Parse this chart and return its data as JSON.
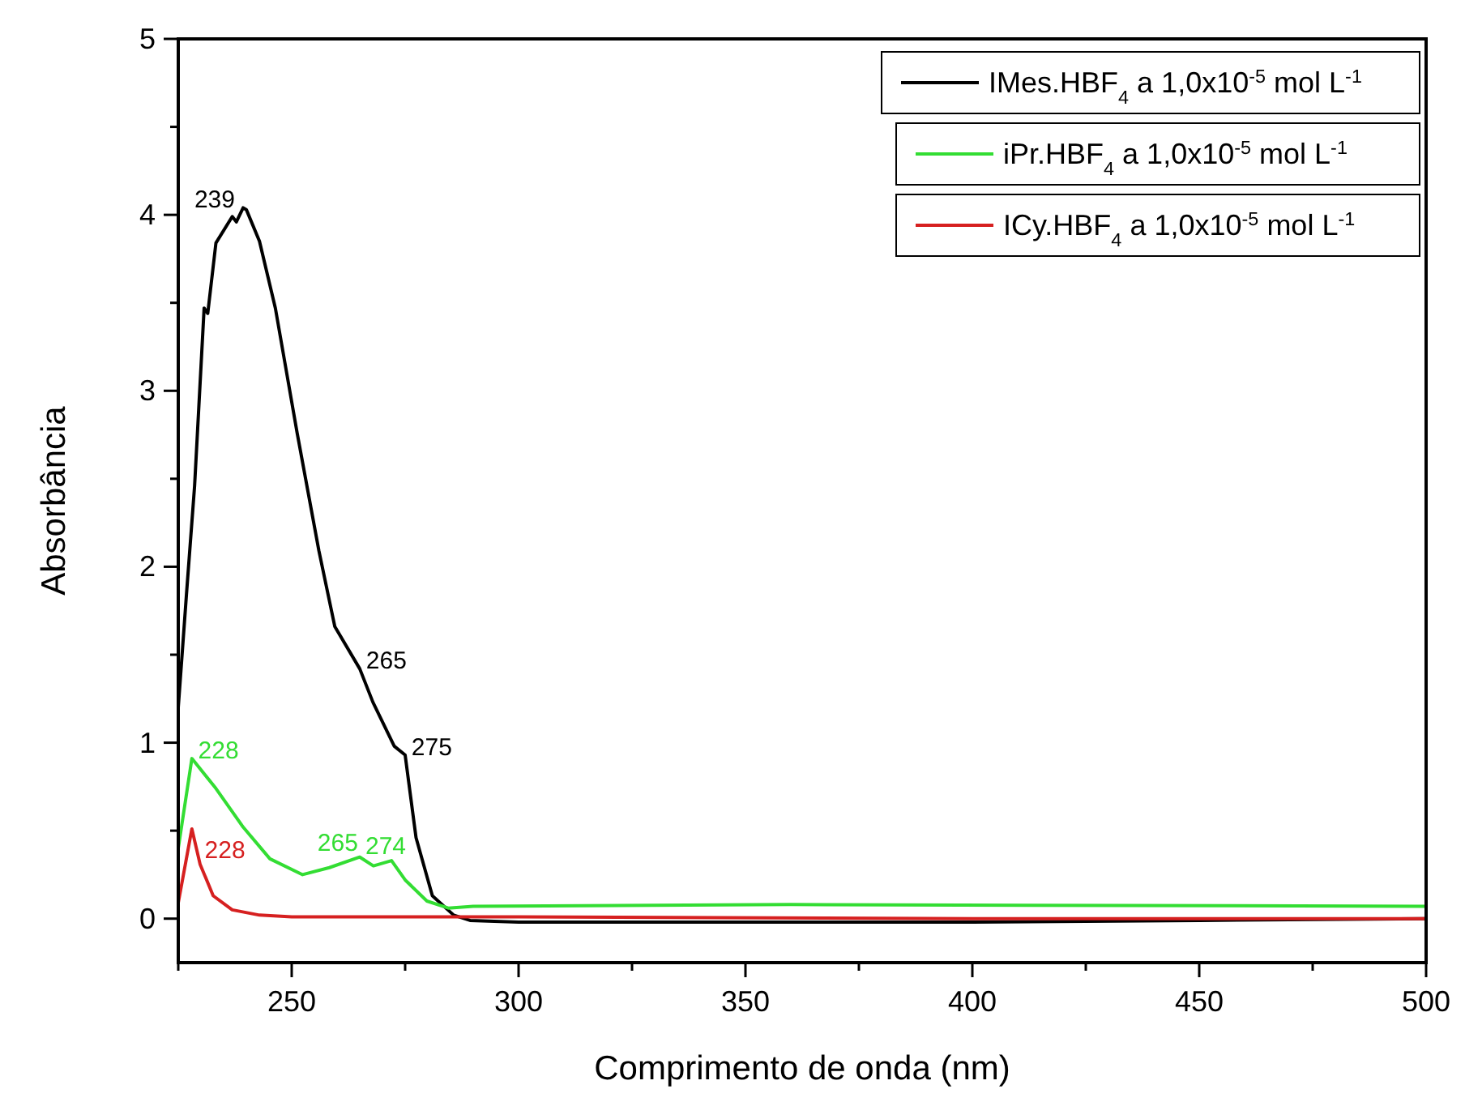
{
  "chart_data": {
    "type": "line",
    "xlabel": "Comprimento de onda (nm)",
    "ylabel": "Absorbância",
    "xlim": [
      225,
      500
    ],
    "xticks": [
      {
        "value": 225,
        "label": null
      },
      250,
      {
        "value": 275,
        "label": null
      },
      300,
      {
        "value": 325,
        "label": null
      },
      350,
      {
        "value": 375,
        "label": null
      },
      400,
      {
        "value": 425,
        "label": null
      },
      450,
      {
        "value": 475,
        "label": null
      },
      500
    ],
    "ylim": [
      -0.25,
      5
    ],
    "yticks": [
      0,
      {
        "value": 0.5,
        "label": null
      },
      1,
      {
        "value": 1.5,
        "label": null
      },
      2,
      {
        "value": 2.5,
        "label": null
      },
      3,
      {
        "value": 3.5,
        "label": null
      },
      4,
      {
        "value": 4.5,
        "label": null
      },
      5
    ],
    "grid": false,
    "legend": "top right",
    "marker": "none",
    "line_style": "solid",
    "annotations": [
      {
        "text": "239",
        "x": 239.3,
        "y": 4.04
      },
      {
        "text": "265",
        "x": 265,
        "y": 1.42
      },
      {
        "text": "275",
        "x": 275,
        "y": 0.93
      },
      {
        "text": "228",
        "x": 228,
        "y": 0.91
      },
      {
        "text": "265",
        "x": 265,
        "y": 0.35
      },
      {
        "text": "274",
        "x": 272,
        "y": 0.33
      },
      {
        "text": "228",
        "x": 228,
        "y": 0.51
      }
    ],
    "series": [
      {
        "name": "IMes.HBF$_{4}$ a 1,0x10$^{-5}$ mol L$^{-1}$",
        "color": "#000000",
        "x": [
          225,
          226.8,
          228.6,
          230.7,
          231.5,
          233.3,
          236.9,
          237.8,
          239.3,
          240,
          242.9,
          246.4,
          251.2,
          256,
          259.5,
          265,
          267.9,
          272.6,
          275,
          277.4,
          281,
          285.7,
          289.3,
          300,
          350,
          400,
          450,
          500
        ],
        "values": [
          1.2,
          1.84,
          2.46,
          3.47,
          3.44,
          3.84,
          3.99,
          3.96,
          4.04,
          4.03,
          3.85,
          3.47,
          2.76,
          2.09,
          1.66,
          1.42,
          1.23,
          0.98,
          0.93,
          0.46,
          0.13,
          0.02,
          -0.01,
          -0.02,
          -0.02,
          -0.02,
          -0.01,
          0.0
        ]
      },
      {
        "name": "iPr.HBF$_{4}$ a 1,0x10$^{-5}$ mol L$^{-1}$",
        "color": "#33dd33",
        "x": [
          225,
          228,
          233.3,
          239.3,
          245.2,
          252.4,
          258.3,
          265,
          268,
          272,
          275,
          279.8,
          284.5,
          290,
          360,
          500
        ],
        "values": [
          0.4,
          0.91,
          0.74,
          0.52,
          0.34,
          0.25,
          0.29,
          0.35,
          0.3,
          0.33,
          0.22,
          0.1,
          0.06,
          0.07,
          0.08,
          0.07
        ]
      },
      {
        "name": "ICy.HBF$_{4}$ a 1,0x10$^{-5}$ mol L$^{-1}$",
        "color": "#d62020",
        "x": [
          225,
          228,
          229.8,
          232.7,
          236.9,
          242.9,
          250,
          300,
          400,
          500
        ],
        "values": [
          0.09,
          0.51,
          0.31,
          0.13,
          0.05,
          0.02,
          0.01,
          0.01,
          0.0,
          0.0
        ]
      }
    ]
  }
}
